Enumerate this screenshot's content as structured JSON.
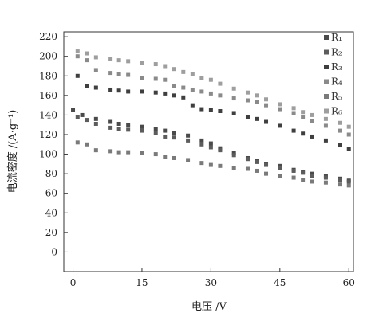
{
  "chart_data": {
    "type": "scatter",
    "title": "",
    "xlabel": "电压 /V",
    "ylabel": "电流密度 /(A·g⁻¹)",
    "xlim": [
      -2,
      61
    ],
    "ylim": [
      -20,
      225
    ],
    "xticks": [
      0,
      15,
      30,
      45,
      60
    ],
    "yticks": [
      0,
      20,
      40,
      60,
      80,
      100,
      120,
      140,
      160,
      180,
      200,
      220
    ],
    "legend_position": "top-right",
    "series": [
      {
        "name": "R₁",
        "color": "#4a4a4a",
        "points": [
          [
            0,
            145
          ],
          [
            2,
            140
          ],
          [
            5,
            136
          ],
          [
            8,
            133
          ],
          [
            10,
            131
          ],
          [
            12,
            130
          ],
          [
            15,
            128
          ],
          [
            18,
            126
          ],
          [
            20,
            124
          ],
          [
            22,
            122
          ],
          [
            25,
            119
          ],
          [
            28,
            114
          ],
          [
            30,
            111
          ],
          [
            32,
            106
          ],
          [
            35,
            101
          ],
          [
            38,
            96
          ],
          [
            40,
            93
          ],
          [
            42,
            90
          ],
          [
            45,
            88
          ],
          [
            48,
            84
          ],
          [
            50,
            82
          ],
          [
            52,
            80
          ],
          [
            55,
            78
          ],
          [
            58,
            75
          ],
          [
            60,
            73
          ]
        ]
      },
      {
        "name": "R₂",
        "color": "#5c5c5c",
        "points": [
          [
            1,
            138
          ],
          [
            3,
            135
          ],
          [
            5,
            131
          ],
          [
            8,
            127
          ],
          [
            10,
            126
          ],
          [
            12,
            125
          ],
          [
            15,
            124
          ],
          [
            18,
            122
          ],
          [
            20,
            118
          ],
          [
            22,
            117
          ],
          [
            25,
            114
          ],
          [
            28,
            110
          ],
          [
            30,
            107
          ],
          [
            32,
            104
          ],
          [
            35,
            99
          ],
          [
            38,
            95
          ],
          [
            40,
            92
          ],
          [
            42,
            89
          ],
          [
            45,
            86
          ],
          [
            48,
            83
          ],
          [
            50,
            81
          ],
          [
            52,
            78
          ],
          [
            55,
            76
          ],
          [
            58,
            74
          ],
          [
            60,
            72
          ]
        ]
      },
      {
        "name": "R₃",
        "color": "#3f3f3f",
        "points": [
          [
            1,
            180
          ],
          [
            3,
            170
          ],
          [
            5,
            168
          ],
          [
            8,
            166
          ],
          [
            10,
            165
          ],
          [
            12,
            164
          ],
          [
            15,
            164
          ],
          [
            18,
            163
          ],
          [
            20,
            162
          ],
          [
            22,
            160
          ],
          [
            24,
            158
          ],
          [
            26,
            150
          ],
          [
            28,
            146
          ],
          [
            30,
            145
          ],
          [
            32,
            144
          ],
          [
            35,
            142
          ],
          [
            38,
            138
          ],
          [
            40,
            136
          ],
          [
            42,
            133
          ],
          [
            45,
            129
          ],
          [
            48,
            124
          ],
          [
            50,
            121
          ],
          [
            52,
            118
          ],
          [
            55,
            114
          ],
          [
            58,
            109
          ],
          [
            60,
            105
          ]
        ]
      },
      {
        "name": "R₄",
        "color": "#8a8a8a",
        "points": [
          [
            1,
            200
          ],
          [
            3,
            196
          ],
          [
            5,
            186
          ],
          [
            8,
            183
          ],
          [
            10,
            182
          ],
          [
            12,
            181
          ],
          [
            15,
            178
          ],
          [
            18,
            177
          ],
          [
            20,
            176
          ],
          [
            22,
            170
          ],
          [
            24,
            168
          ],
          [
            26,
            166
          ],
          [
            28,
            164
          ],
          [
            30,
            162
          ],
          [
            32,
            160
          ],
          [
            35,
            157
          ],
          [
            38,
            155
          ],
          [
            40,
            153
          ],
          [
            42,
            150
          ],
          [
            45,
            146
          ],
          [
            48,
            142
          ],
          [
            50,
            138
          ],
          [
            52,
            134
          ],
          [
            55,
            129
          ],
          [
            58,
            124
          ],
          [
            60,
            120
          ]
        ]
      },
      {
        "name": "R₅",
        "color": "#7a7a7a",
        "points": [
          [
            1,
            112
          ],
          [
            3,
            110
          ],
          [
            5,
            104
          ],
          [
            8,
            103
          ],
          [
            10,
            102
          ],
          [
            12,
            102
          ],
          [
            15,
            101
          ],
          [
            18,
            100
          ],
          [
            20,
            97
          ],
          [
            22,
            96
          ],
          [
            25,
            94
          ],
          [
            28,
            91
          ],
          [
            30,
            89
          ],
          [
            32,
            88
          ],
          [
            35,
            86
          ],
          [
            38,
            85
          ],
          [
            40,
            83
          ],
          [
            42,
            80
          ],
          [
            45,
            78
          ],
          [
            48,
            76
          ],
          [
            50,
            74
          ],
          [
            52,
            72
          ],
          [
            55,
            71
          ],
          [
            58,
            69
          ],
          [
            60,
            68
          ]
        ]
      },
      {
        "name": "R₆",
        "color": "#9e9e9e",
        "points": [
          [
            1,
            205
          ],
          [
            3,
            203
          ],
          [
            5,
            199
          ],
          [
            8,
            197
          ],
          [
            10,
            196
          ],
          [
            12,
            195
          ],
          [
            15,
            193
          ],
          [
            18,
            192
          ],
          [
            20,
            190
          ],
          [
            22,
            187
          ],
          [
            24,
            184
          ],
          [
            26,
            182
          ],
          [
            28,
            178
          ],
          [
            30,
            176
          ],
          [
            32,
            172
          ],
          [
            35,
            167
          ],
          [
            38,
            163
          ],
          [
            40,
            160
          ],
          [
            42,
            156
          ],
          [
            45,
            151
          ],
          [
            48,
            147
          ],
          [
            50,
            143
          ],
          [
            52,
            140
          ],
          [
            55,
            136
          ],
          [
            58,
            132
          ],
          [
            60,
            128
          ]
        ]
      }
    ]
  }
}
